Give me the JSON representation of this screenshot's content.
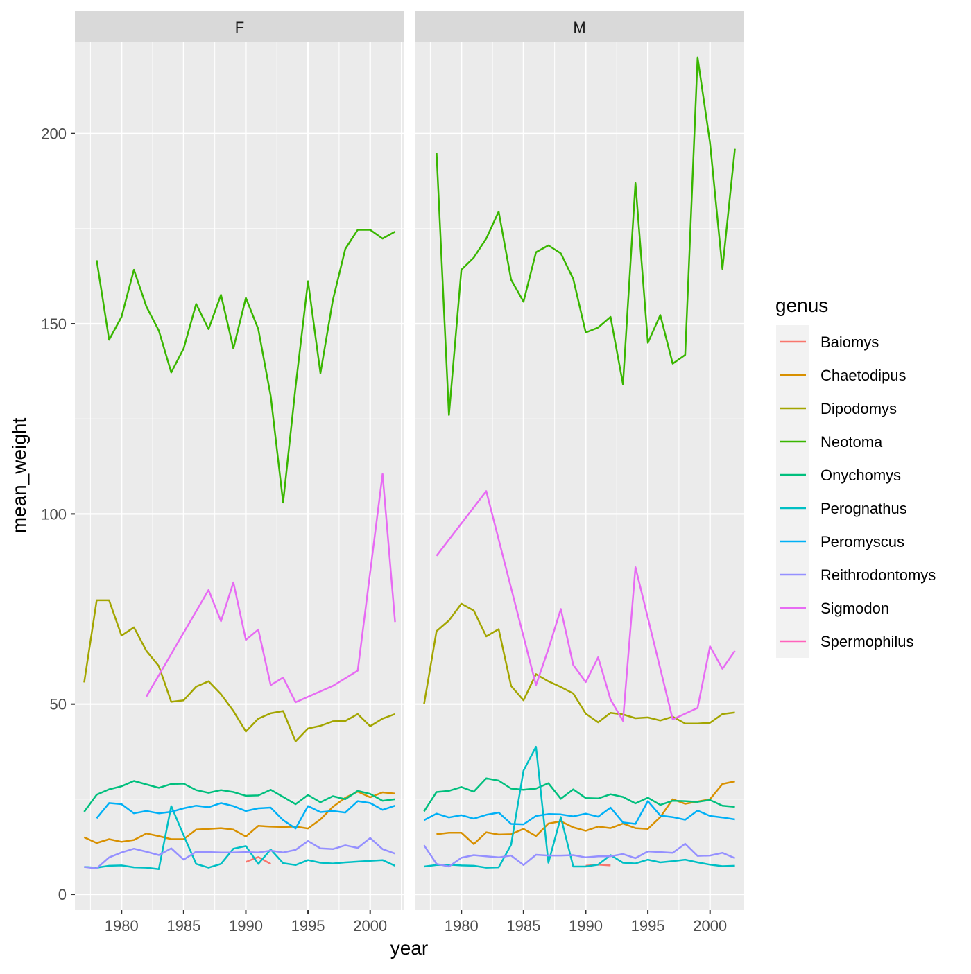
{
  "chart_data": {
    "type": "line",
    "xlabel": "year",
    "ylabel": "mean_weight",
    "xlim": [
      1976.25,
      2002.75
    ],
    "ylim": [
      -4,
      224
    ],
    "x_ticks": [
      1980,
      1985,
      1990,
      1995,
      2000
    ],
    "y_ticks": [
      0,
      50,
      100,
      150,
      200
    ],
    "grid": true,
    "legend_title": "genus",
    "legend_placement": "right",
    "facets": [
      "F",
      "M"
    ],
    "genera": [
      {
        "name": "Baiomys",
        "color": "#F8766D"
      },
      {
        "name": "Chaetodipus",
        "color": "#D89000"
      },
      {
        "name": "Dipodomys",
        "color": "#A3A500"
      },
      {
        "name": "Neotoma",
        "color": "#39B600"
      },
      {
        "name": "Onychomys",
        "color": "#00BF7D"
      },
      {
        "name": "Perognathus",
        "color": "#00BFC4"
      },
      {
        "name": "Peromyscus",
        "color": "#00B0F6"
      },
      {
        "name": "Reithrodontomys",
        "color": "#9590FF"
      },
      {
        "name": "Sigmodon",
        "color": "#E76BF3"
      },
      {
        "name": "Spermophilus",
        "color": "#FF62BC"
      }
    ],
    "panels": [
      {
        "label": "F",
        "series": [
          {
            "genus": "Baiomys",
            "x": [
              1990,
              1991,
              1992
            ],
            "y": [
              8.5,
              9.8,
              8
            ]
          },
          {
            "genus": "Chaetodipus",
            "x": [
              1977,
              1978,
              1979,
              1980,
              1981,
              1982,
              1983,
              1984,
              1985,
              1986,
              1987,
              1988,
              1989,
              1990,
              1991,
              1992,
              1993,
              1994,
              1995,
              1996,
              1997,
              1998,
              1999,
              2000,
              2001,
              2002
            ],
            "y": [
              15,
              13.5,
              14.5,
              13.8,
              14.3,
              16,
              15.3,
              14.5,
              14.5,
              17,
              17.2,
              17.4,
              17,
              15.2,
              18,
              17.8,
              17.7,
              17.8,
              17.3,
              19.7,
              23,
              25.4,
              27,
              25.5,
              26.8,
              26.5
            ]
          },
          {
            "genus": "Dipodomys",
            "x": [
              1977,
              1978,
              1979,
              1980,
              1981,
              1982,
              1983,
              1984,
              1985,
              1986,
              1987,
              1988,
              1989,
              1990,
              1991,
              1992,
              1993,
              1994,
              1995,
              1996,
              1997,
              1998,
              1999,
              2000,
              2001,
              2002
            ],
            "y": [
              55.7,
              77.3,
              77.3,
              68,
              70.2,
              64,
              60,
              50.6,
              51,
              54.6,
              56,
              52.6,
              48.2,
              42.8,
              46.2,
              47.6,
              48.2,
              40.2,
              43.6,
              44.3,
              45.5,
              45.6,
              47.4,
              44.2,
              46.2,
              47.4
            ]
          },
          {
            "genus": "Neotoma",
            "x": [
              1978,
              1979,
              1980,
              1981,
              1982,
              1983,
              1984,
              1985,
              1986,
              1987,
              1988,
              1989,
              1990,
              1991,
              1992,
              1993,
              1994,
              1995,
              1996,
              1997,
              1998,
              1999,
              2000,
              2001,
              2002
            ],
            "y": [
              166.7,
              145.8,
              151.8,
              164.2,
              154.5,
              148.2,
              137.2,
              143.5,
              155.2,
              148.6,
              157.6,
              143.5,
              156.8,
              148.6,
              131,
              103,
              133.5,
              161.2,
              137,
              156.2,
              169.7,
              174.7,
              174.7,
              172.4,
              174.2
            ]
          },
          {
            "genus": "Onychomys",
            "x": [
              1977,
              1978,
              1979,
              1980,
              1981,
              1982,
              1983,
              1984,
              1985,
              1986,
              1987,
              1988,
              1989,
              1990,
              1991,
              1992,
              1993,
              1994,
              1995,
              1996,
              1997,
              1998,
              1999,
              2000,
              2001,
              2002
            ],
            "y": [
              21.7,
              26.2,
              27.6,
              28.4,
              29.8,
              28.9,
              28,
              29,
              29.1,
              27.4,
              26.7,
              27.4,
              26.9,
              25.9,
              26,
              27.5,
              25.6,
              23.7,
              26.1,
              24.2,
              25.8,
              25,
              27.2,
              26.4,
              24.6,
              25
            ]
          },
          {
            "genus": "Perognathus",
            "x": [
              1977,
              1978,
              1979,
              1980,
              1981,
              1982,
              1983,
              1984,
              1985,
              1986,
              1987,
              1988,
              1989,
              1990,
              1991,
              1992,
              1993,
              1994,
              1995,
              1996,
              1997,
              1998,
              1999,
              2000,
              2001,
              2002
            ],
            "y": [
              7.2,
              7,
              7.5,
              7.6,
              7.1,
              7,
              6.6,
              23.2,
              15.5,
              8,
              7,
              8,
              12,
              12.7,
              8,
              11.8,
              8.2,
              7.7,
              9,
              8.3,
              8.1,
              8.4,
              8.6,
              8.8,
              9,
              7.5
            ]
          },
          {
            "genus": "Peromyscus",
            "x": [
              1978,
              1979,
              1980,
              1981,
              1982,
              1983,
              1984,
              1985,
              1986,
              1987,
              1988,
              1989,
              1990,
              1991,
              1992,
              1993,
              1994,
              1995,
              1996,
              1997,
              1998,
              1999,
              2000,
              2001,
              2002
            ],
            "y": [
              20,
              24,
              23.7,
              21.3,
              21.9,
              21.3,
              21.7,
              22.6,
              23.3,
              22.9,
              24,
              23.2,
              21.9,
              22.6,
              22.8,
              19.5,
              17.3,
              23.2,
              21.6,
              21.9,
              21.5,
              24.5,
              24,
              22.2,
              23.3
            ]
          },
          {
            "genus": "Reithrodontomys",
            "x": [
              1977,
              1978,
              1979,
              1980,
              1981,
              1982,
              1983,
              1984,
              1985,
              1986,
              1987,
              1988,
              1989,
              1990,
              1991,
              1992,
              1993,
              1994,
              1995,
              1996,
              1997,
              1998,
              1999,
              2000,
              2001,
              2002
            ],
            "y": [
              7.2,
              6.8,
              9.7,
              11,
              12,
              11.2,
              10.3,
              12.1,
              9.1,
              11.2,
              11.1,
              11,
              11,
              11.1,
              11,
              11.5,
              11,
              11.7,
              14,
              12.1,
              11.9,
              12.9,
              12.2,
              14.8,
              11.9,
              10.7
            ]
          },
          {
            "genus": "Sigmodon",
            "x": [
              1982,
              1987,
              1988,
              1989,
              1990,
              1991,
              1992,
              1993,
              1994,
              1997,
              1999,
              2001,
              2002
            ],
            "y": [
              52,
              80,
              71.8,
              82,
              66.9,
              69.6,
              55,
              57,
              50.5,
              54.8,
              58.8,
              110.5,
              71.6
            ]
          }
        ]
      },
      {
        "label": "M",
        "series": [
          {
            "genus": "Baiomys",
            "x": [
              1990,
              1991,
              1992
            ],
            "y": [
              7.5,
              7.8,
              7.6
            ]
          },
          {
            "genus": "Chaetodipus",
            "x": [
              1978,
              1979,
              1980,
              1981,
              1982,
              1983,
              1984,
              1985,
              1986,
              1987,
              1988,
              1989,
              1990,
              1991,
              1992,
              1993,
              1994,
              1995,
              1996,
              1997,
              1998,
              1999,
              2000,
              2001,
              2002
            ],
            "y": [
              15.8,
              16.2,
              16.2,
              13.2,
              16.3,
              15.7,
              15.8,
              17.2,
              15.3,
              18.6,
              19.2,
              17.6,
              16.7,
              17.8,
              17.4,
              18.6,
              17.4,
              17.2,
              20.3,
              25,
              23.8,
              24.4,
              25,
              29,
              29.7
            ]
          },
          {
            "genus": "Dipodomys",
            "x": [
              1977,
              1978,
              1979,
              1980,
              1981,
              1982,
              1983,
              1984,
              1985,
              1986,
              1987,
              1988,
              1989,
              1990,
              1991,
              1992,
              1993,
              1994,
              1995,
              1996,
              1997,
              1998,
              1999,
              2000,
              2001,
              2002
            ],
            "y": [
              50,
              69.2,
              72,
              76.4,
              74.6,
              67.8,
              69.7,
              54.8,
              51,
              57.9,
              56,
              54.5,
              52.8,
              47.5,
              45.2,
              47.7,
              47.3,
              46.3,
              46.5,
              45.7,
              46.7,
              44.9,
              44.9,
              45.1,
              47.4,
              47.8
            ]
          },
          {
            "genus": "Neotoma",
            "x": [
              1978,
              1979,
              1980,
              1981,
              1982,
              1983,
              1984,
              1985,
              1986,
              1987,
              1988,
              1989,
              1990,
              1991,
              1992,
              1993,
              1994,
              1995,
              1996,
              1997,
              1998,
              1999,
              2000,
              2001,
              2002
            ],
            "y": [
              195,
              126,
              164.2,
              167.4,
              172.4,
              179.5,
              161.6,
              155.8,
              168.8,
              170.6,
              168.5,
              161.8,
              147.7,
              149,
              151.8,
              134.1,
              187,
              145,
              152.3,
              139.5,
              141.8,
              220,
              197.6,
              164.4,
              196
            ]
          },
          {
            "genus": "Onychomys",
            "x": [
              1977,
              1978,
              1979,
              1980,
              1981,
              1982,
              1983,
              1984,
              1985,
              1986,
              1987,
              1988,
              1989,
              1990,
              1991,
              1992,
              1993,
              1994,
              1995,
              1996,
              1997,
              1998,
              1999,
              2000,
              2001,
              2002
            ],
            "y": [
              21.8,
              26.9,
              27.2,
              28.2,
              27,
              30.5,
              29.9,
              27.8,
              27.5,
              27.8,
              29.2,
              25.1,
              27.6,
              25.3,
              25.2,
              26.3,
              25.6,
              23.9,
              25.4,
              23.5,
              24.6,
              24.5,
              24.3,
              24.8,
              23.3,
              23
            ]
          },
          {
            "genus": "Perognathus",
            "x": [
              1977,
              1978,
              1979,
              1980,
              1981,
              1982,
              1983,
              1984,
              1985,
              1986,
              1987,
              1988,
              1989,
              1990,
              1991,
              1992,
              1993,
              1994,
              1995,
              1996,
              1997,
              1998,
              1999,
              2000,
              2001,
              2002
            ],
            "y": [
              7.3,
              7.7,
              7.8,
              7.6,
              7.5,
              7,
              7.1,
              13,
              32.5,
              38.8,
              8.3,
              20.3,
              7.3,
              7.3,
              7.8,
              10.3,
              8.3,
              8.1,
              9.1,
              8.4,
              8.7,
              9.1,
              8.4,
              7.8,
              7.4,
              7.5
            ]
          },
          {
            "genus": "Peromyscus",
            "x": [
              1977,
              1978,
              1979,
              1980,
              1981,
              1982,
              1983,
              1984,
              1985,
              1986,
              1987,
              1988,
              1989,
              1990,
              1991,
              1992,
              1993,
              1994,
              1995,
              1996,
              1997,
              1998,
              1999,
              2000,
              2001,
              2002
            ],
            "y": [
              19.5,
              21.2,
              20.2,
              20.8,
              19.9,
              20.9,
              21.5,
              18.5,
              18.4,
              20.6,
              21.1,
              21,
              20.5,
              21.2,
              20.4,
              22.8,
              18.9,
              18.5,
              24.5,
              20.7,
              20.3,
              19.6,
              22,
              20.6,
              20.2,
              19.7
            ]
          },
          {
            "genus": "Reithrodontomys",
            "x": [
              1977,
              1978,
              1979,
              1980,
              1981,
              1982,
              1983,
              1984,
              1985,
              1986,
              1987,
              1988,
              1989,
              1990,
              1991,
              1992,
              1993,
              1994,
              1995,
              1996,
              1997,
              1998,
              1999,
              2000,
              2001,
              2002
            ],
            "y": [
              12.9,
              8,
              7.3,
              9.6,
              10.3,
              10,
              9.7,
              10.2,
              7.7,
              10.4,
              10.2,
              10.2,
              10.3,
              9.7,
              10,
              10,
              10.6,
              9.5,
              11.3,
              11.1,
              10.9,
              13.3,
              10.1,
              10.2,
              10.9,
              9.5
            ]
          },
          {
            "genus": "Sigmodon",
            "x": [
              1978,
              1982,
              1986,
              1987,
              1988,
              1989,
              1990,
              1991,
              1992,
              1993,
              1994,
              1997,
              1999,
              2000,
              2001,
              2002
            ],
            "y": [
              89,
              106,
              55,
              64.5,
              75,
              60.3,
              55.8,
              62.3,
              51.2,
              45.6,
              86,
              46,
              49,
              65.2,
              59.3,
              64
            ]
          }
        ]
      }
    ]
  }
}
